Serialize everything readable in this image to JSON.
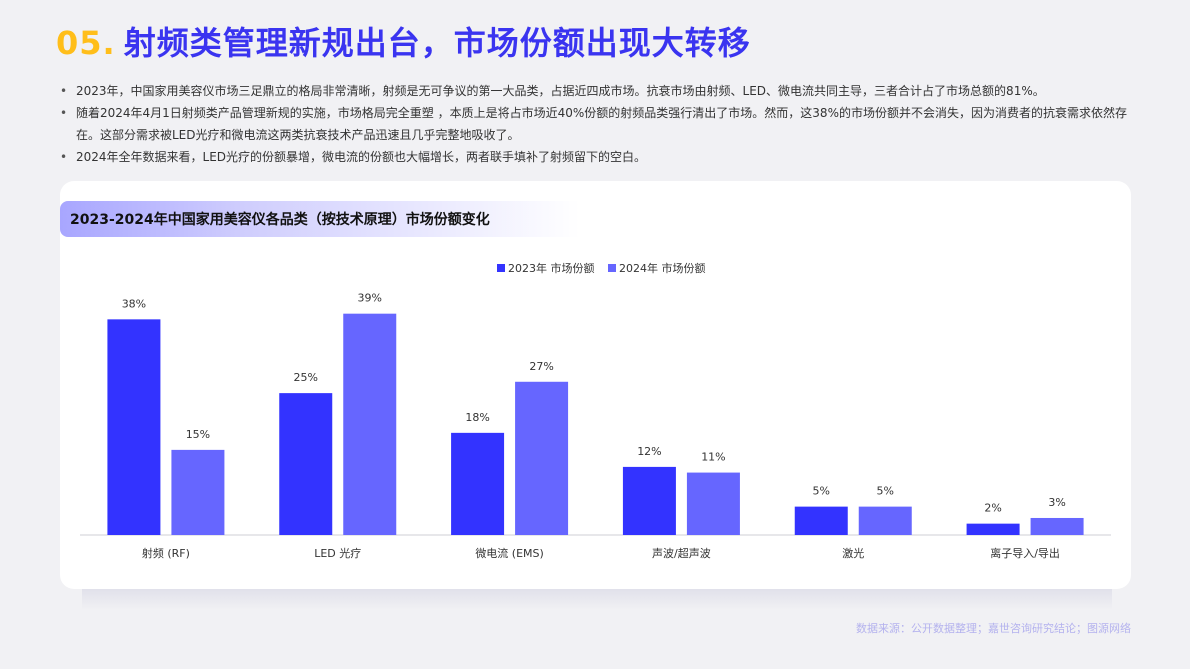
{
  "header": {
    "number": "05.",
    "title": "射频类管理新规出台，市场份额出现大转移"
  },
  "bullets": [
    "2023年，中国家用美容仪市场三足鼎立的格局非常清晰，射频是无可争议的第一大品类，占据近四成市场。抗衰市场由射频、LED、微电流共同主导，三者合计占了市场总额的81%。",
    "随着2024年4月1日射频类产品管理新规的实施，市场格局完全重塑 ，本质上是将占市场近40%份额的射频品类强行清出了市场。然而，这38%的市场份额并不会消失，因为消费者的抗衰需求依然存在。这部分需求被LED光疗和微电流这两类抗衰技术产品迅速且几乎完整地吸收了。",
    "2024年全年数据来看，LED光疗的份额暴增，微电流的份额也大幅增长，两者联手填补了射频留下的空白。"
  ],
  "source": "数据来源：公开数据整理；嘉世咨询研究结论；图源网络",
  "colors": {
    "series_2023": "#3333ff",
    "series_2024": "#6666ff",
    "title_blue": "#3a34f0",
    "title_number": "#ffbe1a"
  },
  "chart_data": {
    "type": "bar",
    "title": "2023-2024年中国家用美容仪各品类（按技术原理）市场份额变化",
    "xlabel": "",
    "ylabel": "",
    "ylim": [
      0,
      40
    ],
    "grid": false,
    "legend_position": "top-center",
    "categories": [
      "射频 (RF)",
      "LED 光疗",
      "微电流 (EMS)",
      "声波/超声波",
      "激光",
      "离子导入/导出"
    ],
    "series": [
      {
        "name": "2023年 市场份额",
        "values": [
          38,
          25,
          18,
          12,
          5,
          2
        ],
        "labels": [
          "38%",
          "25%",
          "18%",
          "12%",
          "5%",
          "2%"
        ]
      },
      {
        "name": "2024年 市场份额",
        "values": [
          15,
          39,
          27,
          11,
          5,
          3
        ],
        "labels": [
          "15%",
          "39%",
          "27%",
          "11%",
          "5%",
          "3%"
        ]
      }
    ]
  }
}
